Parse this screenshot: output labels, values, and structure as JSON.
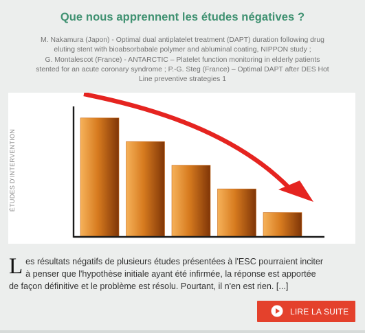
{
  "article": {
    "title": "Que nous apprennent les études négatives ?",
    "references": [
      "M. Nakamura (Japon) - Optimal dual antiplatelet treatment (DAPT) duration following drug",
      "eluting stent with bioabsorbabale polymer and abluminal coating, NIPPON study ;",
      "G. Montalescot (France) - ANTARCTIC – Platelet function monitoring in elderly patients",
      "stented for an acute coronary syndrome ; P.-G. Steg (France) – Optimal DAPT after DES Hot",
      "Line preventive strategies 1"
    ],
    "excerpt": {
      "dropcap": "L",
      "lines": [
        "es résultats négatifs de plusieurs études présentées à l'ESC pourraient inciter",
        "à penser que l'hypothèse initiale ayant été infirmée, la réponse est apportée",
        "de façon définitive et le problème est résolu. Pourtant, il n'en est rien. [...]"
      ]
    },
    "read_more_label": "LIRE LA SUITE",
    "read_more_icon": "play-circle-icon"
  },
  "illustration": {
    "ylabel": "ÉTUDES D'INTERVENTION",
    "bar_color": "#c8691a",
    "arrow_color": "#e52420",
    "accent_color": "#3f9171",
    "button_color": "#e4412c"
  },
  "chart_data": {
    "type": "bar",
    "categories": [
      "",
      "",
      "",
      "",
      ""
    ],
    "values": [
      5,
      4,
      3,
      2,
      1
    ],
    "ylabel": "ÉTUDES D'INTERVENTION",
    "xlabel": "",
    "ylim": [
      0,
      5.4
    ],
    "grid": false,
    "legend": "none"
  }
}
